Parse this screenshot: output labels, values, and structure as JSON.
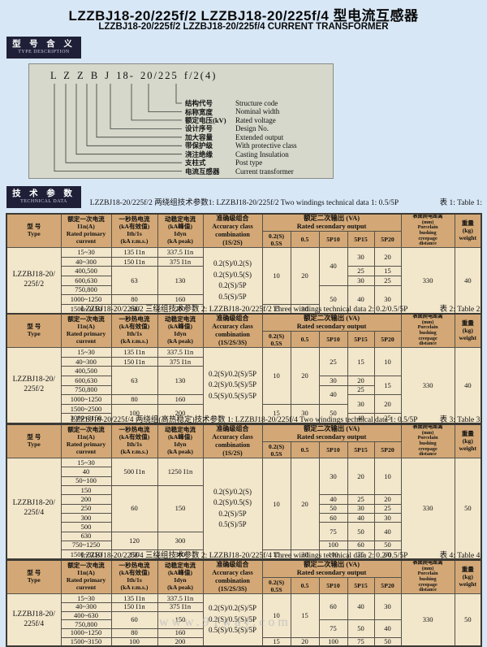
{
  "page": {
    "title_cn": "LZZBJ18-20/225f/2  LZZBJ18-20/225f/4 型电流互感器",
    "title_en": "LZZBJ18-20/225f/2  LZZBJ18-20/225f/4  CURRENT TRANSFORMER",
    "watermark": "www.91way.com"
  },
  "badges": {
    "type_description": {
      "cn": "型 号 含 义",
      "en": "TYPE DESCRIPTION"
    },
    "technical_data": {
      "cn": "技 术 参 数",
      "en": "TECHNICAL DATA"
    }
  },
  "type_diagram": {
    "code": "L Z Z B J  18- 20/225 f/2(4)",
    "labels": [
      {
        "cn": "结构代号",
        "en": "Structure code"
      },
      {
        "cn": "标称宽度",
        "en": "Nominal width"
      },
      {
        "cn": "额定电压(kV)",
        "en": "Rated voltage"
      },
      {
        "cn": "设计序号",
        "en": "Design No."
      },
      {
        "cn": "加大容量",
        "en": "Extended output"
      },
      {
        "cn": "带保护级",
        "en": "With protective class"
      },
      {
        "cn": "浇注绝缘",
        "en": "Casting Insulation"
      },
      {
        "cn": "支柱式",
        "en": "Post type"
      },
      {
        "cn": "电流互感器",
        "en": "Current transformer"
      }
    ]
  },
  "table_header": {
    "type": "型    号\nType",
    "primary": "额定一次电流\nI1n(A)\nRated primary\ncurrent",
    "ith": "一秒热电流\n(kA有效值)\nIth/1s\n(kA r.m.s.)",
    "idyn": "动稳定电流\n(kA峰值)\nIdyn\n(kA peak)",
    "accuracy": "准确级组合\nAccuracy class\ncombination",
    "secondary": "额定二次输出 (VA)\nRated secondary output",
    "subs": [
      "0.2(S)\n0.5S",
      "0.5",
      "5P10",
      "5P15",
      "5P20"
    ],
    "porcelain": "表面爬电距离\n(mm)\nPorcelain\nbushing\ncreepage\ndistance",
    "weight": "重量\n(kg)\nweight"
  },
  "tables": [
    {
      "caption": "LZZBJ18-20/225f/2 两绕组技术参数1:  LZZBJ18-20/225f/2 Two windings technical data 1: 0.5/5P",
      "ref": "表 1: Table 1:",
      "combo_note": "(1S/2S)",
      "rows": [
        [
          [
            "LZZBJ18-20/\n225f/2",
            7,
            "type"
          ],
          [
            "15~30"
          ],
          [
            "135 I1n"
          ],
          [
            "337.5 I1n"
          ],
          [
            "0.2(S)/0.2(S)\n0.2(S)/0.5(S)\n0.2(S)/5P\n0.5(S)/5P",
            7,
            "acc"
          ],
          [
            "10",
            6
          ],
          [
            "20",
            6
          ],
          [
            "40",
            4
          ],
          [
            "30",
            2
          ],
          [
            "20",
            2
          ],
          [
            "330",
            7
          ],
          [
            "40",
            7
          ]
        ],
        [
          [
            "40~300"
          ],
          [
            "150 I1n"
          ],
          [
            "375 I1n"
          ]
        ],
        [
          [
            "400,500"
          ],
          [
            "63",
            3
          ],
          [
            "130",
            3
          ],
          [
            "25"
          ],
          [
            "15"
          ]
        ],
        [
          [
            "600,630"
          ],
          [
            "30"
          ],
          [
            "25"
          ]
        ],
        [
          [
            "750,800"
          ],
          [
            "50",
            3
          ],
          [
            "40",
            3
          ],
          [
            "30",
            3
          ]
        ],
        [
          [
            "1000~1250"
          ],
          [
            "80"
          ],
          [
            "160"
          ]
        ],
        [
          [
            "1500~3150"
          ],
          [
            "100"
          ],
          [
            "200"
          ],
          [
            "15"
          ],
          [
            "30"
          ]
        ]
      ]
    },
    {
      "caption": "LZZBJ18-20/225f/2 三绕组技术参数 2:  LZZBJ18-20/225f/2 Three windings technical data 2: 0.2/0.5/5P",
      "ref": "表 2: Table 2:",
      "combo_note": "(1S/2S/3S)",
      "rows": [
        [
          [
            "LZZBJ18-20/\n225f/2",
            8,
            "type"
          ],
          [
            "15~30"
          ],
          [
            "135 I1n"
          ],
          [
            "337.5 I1n"
          ],
          [
            "0.2(S)/0.2(S)/5P\n0.2(S)/0.5(S)/5P\n0.5(S)/0.5(S)/5P",
            8,
            "acc"
          ],
          [
            "10",
            6
          ],
          [
            "20",
            6
          ],
          [
            "25",
            3
          ],
          [
            "15",
            3
          ],
          [
            "10",
            3
          ],
          [
            "330",
            8
          ],
          [
            "40",
            8
          ]
        ],
        [
          [
            "40~300"
          ],
          [
            "150 I1n"
          ],
          [
            "375 I1n"
          ]
        ],
        [
          [
            "400,500"
          ],
          [
            "63",
            3
          ],
          [
            "130",
            3
          ]
        ],
        [
          [
            "600,630"
          ],
          [
            "30"
          ],
          [
            "20"
          ],
          [
            "15",
            2
          ]
        ],
        [
          [
            "750,800"
          ],
          [
            "40",
            2
          ],
          [
            "25"
          ]
        ],
        [
          [
            "1000~1250"
          ],
          [
            "80"
          ],
          [
            "160"
          ],
          [
            "30",
            2
          ],
          [
            "20",
            2
          ]
        ],
        [
          [
            "1500~2500"
          ],
          [
            "100",
            2
          ],
          [
            "200",
            2
          ],
          [
            "15",
            2
          ],
          [
            "30",
            2
          ],
          [
            "50",
            2
          ]
        ],
        [
          [
            "3000~3150"
          ],
          [
            "40"
          ],
          [
            "25"
          ]
        ]
      ]
    },
    {
      "caption": "LZZBJ18-20/225f/4 两绕组(高热稳定)技术参数 1:  LZZBJ18-20/225f/4 Two windings technical data 1: 0.5/5P",
      "ref": "表 3: Table 3:",
      "combo_note": "(1S/2S)",
      "rows": [
        [
          [
            "LZZBJ18-20/\n225f/4",
            11,
            "type"
          ],
          [
            "15~30"
          ],
          [
            "500 I1n",
            3
          ],
          [
            "1250 I1n",
            3
          ],
          [
            "0.2(S)/0.2(S)\n0.2(S)/0.5(S)\n0.2(S)/5P\n0.5(S)/5P",
            11,
            "acc"
          ],
          [
            "10",
            10
          ],
          [
            "20",
            10
          ],
          [
            "30",
            4
          ],
          [
            "20",
            4
          ],
          [
            "10",
            4
          ],
          [
            "330",
            11
          ],
          [
            "50",
            11
          ]
        ],
        [
          [
            "40"
          ]
        ],
        [
          [
            "50~100"
          ]
        ],
        [
          [
            "150"
          ],
          [
            "60",
            5
          ],
          [
            "150",
            5
          ]
        ],
        [
          [
            "200"
          ],
          [
            "40"
          ],
          [
            "25"
          ],
          [
            "20"
          ]
        ],
        [
          [
            "250"
          ],
          [
            "50"
          ],
          [
            "30"
          ],
          [
            "25"
          ]
        ],
        [
          [
            "300"
          ],
          [
            "60"
          ],
          [
            "40"
          ],
          [
            "30"
          ]
        ],
        [
          [
            "500"
          ],
          [
            "75",
            2
          ],
          [
            "50",
            2
          ],
          [
            "40",
            2
          ]
        ],
        [
          [
            "630"
          ],
          [
            "120",
            2
          ],
          [
            "300",
            2
          ]
        ],
        [
          [
            "750~1250"
          ],
          [
            "100"
          ],
          [
            "60"
          ],
          [
            "50"
          ]
        ],
        [
          [
            "1500~3150"
          ],
          [
            "150"
          ],
          [
            "300"
          ],
          [
            "15"
          ],
          [
            "30"
          ],
          [
            "100"
          ],
          [
            "75"
          ],
          [
            "60"
          ]
        ]
      ]
    },
    {
      "caption": "LZZBJ18-20/225f/4 三绕组技术参数 2:  LZZBJ18-20/225f/4 Three windings technical data 2: 0.2/0.5/5P",
      "ref": "表 4: Table 4:",
      "combo_note": "(1S/2S/3S)",
      "rows": [
        [
          [
            "LZZBJ18-20/\n225f/4",
            6,
            "type"
          ],
          [
            "15~30"
          ],
          [
            "135 I1n"
          ],
          [
            "337.5 I1n"
          ],
          [
            "0.2(S)/0.2(S)/5P\n0.2(S)/0.5(S)/5P\n0.5(S)/0.5(S)/5P",
            6,
            "acc"
          ],
          [
            "10",
            5
          ],
          [
            "15",
            5
          ],
          [
            "60",
            3
          ],
          [
            "40",
            3
          ],
          [
            "30",
            3
          ],
          [
            "330",
            6
          ],
          [
            "50",
            6
          ]
        ],
        [
          [
            "40~300"
          ],
          [
            "150 I1n"
          ],
          [
            "375 I1n"
          ]
        ],
        [
          [
            "400~630"
          ],
          [
            "60",
            2
          ],
          [
            "150",
            2
          ]
        ],
        [
          [
            "750,800"
          ],
          [
            "75",
            2
          ],
          [
            "50",
            2
          ],
          [
            "40",
            2
          ]
        ],
        [
          [
            "1000~1250"
          ],
          [
            "80"
          ],
          [
            "160"
          ]
        ],
        [
          [
            "1500~3150"
          ],
          [
            "100"
          ],
          [
            "200"
          ],
          [
            "15"
          ],
          [
            "20"
          ],
          [
            "100"
          ],
          [
            "75"
          ],
          [
            "50"
          ]
        ]
      ]
    }
  ]
}
